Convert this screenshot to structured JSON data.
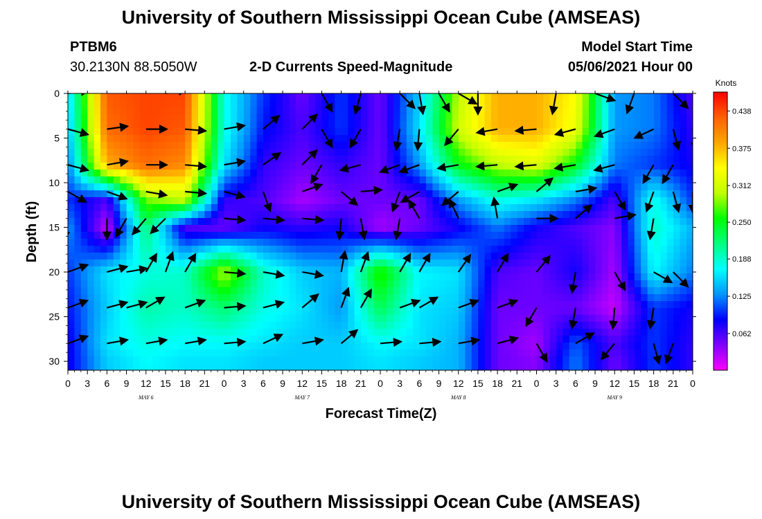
{
  "header": {
    "title": "University of Southern Mississippi Ocean Cube (AMSEAS)",
    "station": "PTBM6",
    "coords": "30.2130N  88.5050W",
    "subtitle": "2-D Currents Speed-Magnitude",
    "model_label": "Model Start Time",
    "model_time": "05/06/2021 Hour 00"
  },
  "footer": {
    "title": "University of Southern Mississippi Ocean Cube (AMSEAS)"
  },
  "chart_data": {
    "type": "heatmap",
    "title": "2-D Currents Speed-Magnitude",
    "xlabel": "Forecast Time(Z)",
    "ylabel": "Depth (ft)",
    "x_ticks": [
      "0",
      "3",
      "6",
      "9",
      "12",
      "15",
      "18",
      "21",
      "0",
      "3",
      "6",
      "9",
      "12",
      "15",
      "18",
      "21",
      "0",
      "3",
      "6",
      "9",
      "12",
      "15",
      "18",
      "21",
      "0",
      "3",
      "6",
      "9",
      "12",
      "15",
      "18",
      "21",
      "0"
    ],
    "x_day_labels": [
      "MAY  6",
      "MAY  7",
      "MAY  8",
      "MAY  9"
    ],
    "y_ticks": [
      0,
      5,
      10,
      15,
      20,
      25,
      30
    ],
    "ylim": [
      31,
      0
    ],
    "colorbar": {
      "unit": "Knots",
      "ticks": [
        "0.438",
        "0.375",
        "0.312",
        "0.250",
        "0.188",
        "0.125",
        "0.062"
      ],
      "range": [
        0.0,
        0.47
      ],
      "colors": [
        "#ff00ff",
        "#8000ff",
        "#0000ff",
        "#0096ff",
        "#00ffff",
        "#00ff80",
        "#00ff00",
        "#c0ff00",
        "#ffff00",
        "#ffa500",
        "#ff6000",
        "#ff0000"
      ]
    },
    "depth_layers_ft": [
      0,
      4,
      8,
      12,
      15,
      20,
      24,
      28,
      30
    ],
    "speed_grid_hours": [
      0,
      6,
      12,
      18,
      24,
      30,
      36,
      42,
      48,
      54,
      60,
      66,
      72,
      78,
      84,
      90,
      96
    ],
    "speed_grid_knots": [
      [
        0.15,
        0.43,
        0.44,
        0.44,
        0.18,
        0.1,
        0.05,
        0.1,
        0.05,
        0.15,
        0.3,
        0.38,
        0.38,
        0.34,
        0.13,
        0.12,
        0.06
      ],
      [
        0.14,
        0.42,
        0.44,
        0.43,
        0.18,
        0.09,
        0.06,
        0.1,
        0.05,
        0.16,
        0.31,
        0.38,
        0.38,
        0.33,
        0.13,
        0.12,
        0.07
      ],
      [
        0.12,
        0.38,
        0.42,
        0.4,
        0.16,
        0.07,
        0.05,
        0.07,
        0.05,
        0.13,
        0.25,
        0.3,
        0.32,
        0.25,
        0.12,
        0.1,
        0.08
      ],
      [
        0.1,
        0.06,
        0.28,
        0.3,
        0.07,
        0.06,
        0.03,
        0.05,
        0.05,
        0.05,
        0.13,
        0.18,
        0.16,
        0.12,
        0.06,
        0.18,
        0.1
      ],
      [
        0.13,
        0.02,
        0.22,
        0.06,
        0.05,
        0.08,
        0.07,
        0.08,
        0.03,
        0.05,
        0.08,
        0.12,
        0.08,
        0.06,
        0.04,
        0.19,
        0.14
      ],
      [
        0.1,
        0.16,
        0.18,
        0.19,
        0.3,
        0.19,
        0.15,
        0.14,
        0.27,
        0.17,
        0.16,
        0.06,
        0.05,
        0.08,
        0.03,
        0.17,
        0.12
      ],
      [
        0.09,
        0.15,
        0.2,
        0.19,
        0.22,
        0.18,
        0.16,
        0.13,
        0.23,
        0.16,
        0.15,
        0.05,
        0.05,
        0.05,
        0.02,
        0.1,
        0.08
      ],
      [
        0.08,
        0.16,
        0.18,
        0.17,
        0.17,
        0.16,
        0.15,
        0.15,
        0.17,
        0.16,
        0.14,
        0.05,
        0.03,
        0.11,
        0.06,
        0.1,
        0.07
      ],
      [
        0.08,
        0.15,
        0.17,
        0.16,
        0.16,
        0.15,
        0.15,
        0.15,
        0.16,
        0.15,
        0.14,
        0.05,
        0.04,
        0.12,
        0.05,
        0.1,
        0.07
      ]
    ],
    "vectors": [
      [
        [
          0,
          0,
          8
        ],
        [
          9,
          0,
          20
        ],
        [
          15,
          0,
          10
        ],
        [
          27,
          0,
          20
        ],
        [
          30,
          0,
          30
        ],
        [
          39,
          0,
          -60
        ],
        [
          45,
          0,
          -105
        ],
        [
          51,
          0,
          -45
        ],
        [
          54,
          0,
          -80
        ],
        [
          57,
          0,
          -60
        ],
        [
          60,
          0,
          -30
        ],
        [
          63,
          0,
          -90
        ],
        [
          75,
          0,
          -100
        ],
        [
          81,
          0,
          -20
        ],
        [
          87,
          0,
          -110
        ],
        [
          93,
          0,
          -45
        ],
        [
          96,
          0,
          20
        ]
      ],
      [
        [
          0,
          4,
          -15
        ],
        [
          6,
          4,
          8
        ],
        [
          12,
          4,
          0
        ],
        [
          18,
          4,
          -5
        ],
        [
          24,
          4,
          10
        ],
        [
          30,
          4,
          40
        ],
        [
          36,
          4,
          45
        ],
        [
          39,
          4,
          -60
        ],
        [
          45,
          4,
          -120
        ],
        [
          51,
          4,
          -100
        ],
        [
          54,
          4,
          -95
        ],
        [
          60,
          4,
          -130
        ],
        [
          66,
          4,
          -170
        ],
        [
          72,
          4,
          -175
        ],
        [
          78,
          4,
          -165
        ],
        [
          84,
          4,
          -160
        ],
        [
          90,
          4,
          -155
        ],
        [
          93,
          4,
          -75
        ],
        [
          96,
          4,
          -80
        ]
      ],
      [
        [
          0,
          8,
          -15
        ],
        [
          6,
          8,
          10
        ],
        [
          12,
          8,
          0
        ],
        [
          18,
          8,
          -5
        ],
        [
          24,
          8,
          10
        ],
        [
          30,
          8,
          35
        ],
        [
          36,
          8,
          45
        ],
        [
          39,
          8,
          -120
        ],
        [
          45,
          8,
          -165
        ],
        [
          51,
          8,
          -160
        ],
        [
          54,
          8,
          -160
        ],
        [
          60,
          8,
          -170
        ],
        [
          66,
          8,
          -175
        ],
        [
          72,
          8,
          -175
        ],
        [
          78,
          8,
          -170
        ],
        [
          84,
          8,
          -165
        ],
        [
          90,
          8,
          -120
        ],
        [
          93,
          8,
          -120
        ],
        [
          96,
          8,
          -75
        ]
      ],
      [
        [
          0,
          11,
          -30
        ],
        [
          6,
          11,
          -20
        ],
        [
          12,
          11,
          -10
        ],
        [
          18,
          11,
          -5
        ],
        [
          24,
          11,
          -15
        ],
        [
          30,
          11,
          -70
        ],
        [
          36,
          11,
          20
        ],
        [
          42,
          11,
          -40
        ],
        [
          45,
          11,
          5
        ],
        [
          51,
          11,
          -110
        ],
        [
          54,
          11,
          -150
        ],
        [
          60,
          11,
          -140
        ],
        [
          66,
          11,
          20
        ],
        [
          72,
          11,
          40
        ],
        [
          78,
          11,
          10
        ],
        [
          84,
          11,
          -60
        ],
        [
          90,
          11,
          -110
        ],
        [
          93,
          11,
          -75
        ],
        [
          96,
          11,
          -90
        ]
      ],
      [
        [
          0,
          14,
          -100
        ],
        [
          6,
          14,
          -90
        ],
        [
          9,
          14,
          -120
        ],
        [
          12,
          14,
          -130
        ],
        [
          15,
          14,
          -135
        ],
        [
          24,
          14,
          -5
        ],
        [
          30,
          14,
          -5
        ],
        [
          36,
          14,
          -5
        ],
        [
          42,
          14,
          -95
        ],
        [
          45,
          14,
          -80
        ],
        [
          51,
          14,
          -100
        ],
        [
          54,
          14,
          120
        ],
        [
          60,
          14,
          115
        ],
        [
          66,
          14,
          100
        ],
        [
          72,
          14,
          0
        ],
        [
          78,
          14,
          40
        ],
        [
          84,
          14,
          10
        ],
        [
          90,
          14,
          -100
        ],
        [
          96,
          14,
          60
        ]
      ],
      [
        [
          0,
          20,
          20
        ],
        [
          6,
          20,
          15
        ],
        [
          9,
          20,
          10
        ],
        [
          12,
          20,
          60
        ],
        [
          15,
          20,
          70
        ],
        [
          18,
          20,
          60
        ],
        [
          24,
          20,
          -5
        ],
        [
          30,
          20,
          -10
        ],
        [
          36,
          20,
          -10
        ],
        [
          42,
          20,
          80
        ],
        [
          45,
          20,
          70
        ],
        [
          51,
          20,
          60
        ],
        [
          54,
          20,
          60
        ],
        [
          60,
          20,
          55
        ],
        [
          66,
          20,
          60
        ],
        [
          72,
          20,
          50
        ],
        [
          78,
          20,
          -100
        ],
        [
          84,
          20,
          -60
        ],
        [
          90,
          20,
          -30
        ],
        [
          93,
          20,
          -45
        ],
        [
          96,
          20,
          40
        ]
      ],
      [
        [
          0,
          24,
          20
        ],
        [
          6,
          24,
          15
        ],
        [
          9,
          24,
          15
        ],
        [
          12,
          24,
          30
        ],
        [
          18,
          24,
          20
        ],
        [
          24,
          24,
          5
        ],
        [
          30,
          24,
          15
        ],
        [
          36,
          24,
          40
        ],
        [
          42,
          24,
          70
        ],
        [
          45,
          24,
          60
        ],
        [
          51,
          24,
          20
        ],
        [
          54,
          24,
          30
        ],
        [
          60,
          24,
          20
        ],
        [
          66,
          24,
          20
        ],
        [
          72,
          24,
          -120
        ],
        [
          78,
          24,
          -100
        ],
        [
          84,
          24,
          -95
        ],
        [
          90,
          24,
          -100
        ],
        [
          96,
          24,
          50
        ]
      ],
      [
        [
          0,
          28,
          20
        ],
        [
          6,
          28,
          10
        ],
        [
          12,
          28,
          10
        ],
        [
          18,
          28,
          10
        ],
        [
          24,
          28,
          5
        ],
        [
          30,
          28,
          25
        ],
        [
          36,
          28,
          10
        ],
        [
          42,
          28,
          40
        ],
        [
          48,
          28,
          5
        ],
        [
          54,
          28,
          5
        ],
        [
          60,
          28,
          10
        ],
        [
          66,
          28,
          15
        ],
        [
          72,
          28,
          -60
        ],
        [
          78,
          28,
          30
        ],
        [
          84,
          28,
          -130
        ],
        [
          90,
          28,
          -75
        ],
        [
          93,
          28,
          -110
        ],
        [
          96,
          28,
          20
        ]
      ]
    ]
  }
}
